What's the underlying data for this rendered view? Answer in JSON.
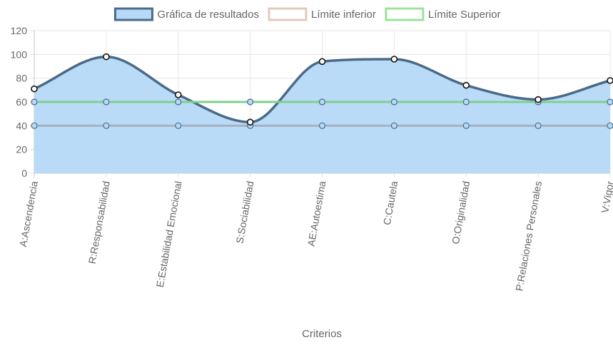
{
  "chart_data": {
    "type": "line",
    "categories": [
      "A:Ascendencia",
      "R:Responsabilidad",
      "E:Estabilidad Emocional",
      "S:Sociabilidad",
      "AE:Autoestima",
      "C:Cautela",
      "O:Originalidad",
      "P:Relaciones Personales",
      "V:Vigor"
    ],
    "series": [
      {
        "name": "Gráfica de resultados",
        "values": [
          71,
          98,
          66,
          43,
          94,
          96,
          74,
          62,
          78
        ],
        "line_color": "#4a6a89",
        "fill_color": "#b6d9f7",
        "filled": true,
        "smooth": true
      },
      {
        "name": "Límite inferior",
        "values": [
          40,
          40,
          40,
          40,
          40,
          40,
          40,
          40,
          40
        ],
        "line_color": "#a6b0c3",
        "legend_color": "#e5c9bd",
        "filled": false,
        "smooth": false
      },
      {
        "name": "Límite Superior",
        "values": [
          60,
          60,
          60,
          60,
          60,
          60,
          60,
          60,
          60
        ],
        "line_color": "#7fd08d",
        "legend_color": "#9be39b",
        "filled": false,
        "smooth": false
      }
    ],
    "ylim": [
      0,
      120
    ],
    "yticks": [
      0,
      20,
      40,
      60,
      80,
      100,
      120
    ],
    "xlabel": "Criterios",
    "ylabel": "",
    "grid": true,
    "legend_position": "top"
  }
}
